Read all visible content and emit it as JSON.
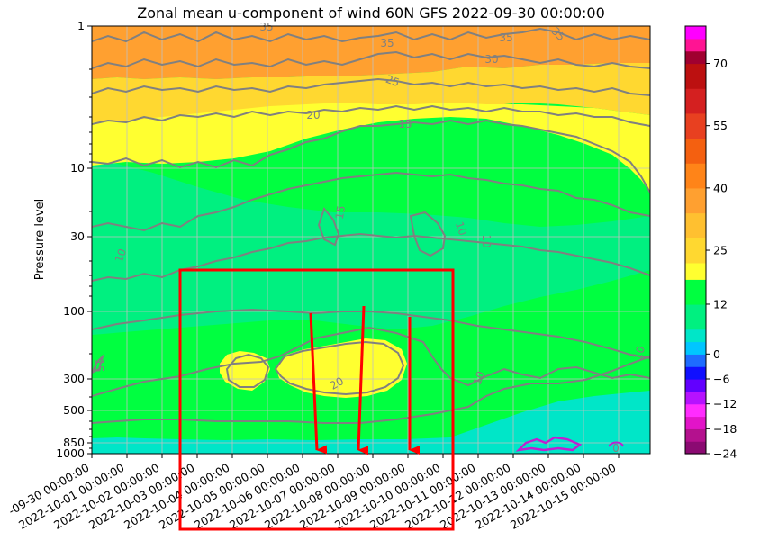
{
  "chart_data": {
    "type": "heatmap",
    "title": "Zonal mean u-component of wind 60N GFS 2022-09-30 00:00:00",
    "ylabel": "Pressure level",
    "xlabel": "",
    "y_scale": "log",
    "y_inverted": true,
    "ylim": [
      1000,
      1
    ],
    "y_ticks": [
      "1",
      "10",
      "30",
      "100",
      "300",
      "500",
      "850",
      "1000"
    ],
    "x_ticks": [
      "2022-09-30 00:00:00",
      "2022-10-01 00:00:00",
      "2022-10-02 00:00:00",
      "2022-10-03 00:00:00",
      "2022-10-04 00:00:00",
      "2022-10-05 00:00:00",
      "2022-10-06 00:00:00",
      "2022-10-07 00:00:00",
      "2022-10-08 00:00:00",
      "2022-10-09 00:00:00",
      "2022-10-10 00:00:00",
      "2022-10-11 00:00:00",
      "2022-10-12 00:00:00",
      "2022-10-13 00:00:00",
      "2022-10-14 00:00:00",
      "2022-10-15 00:00:00"
    ],
    "x_tick_display": [
      "-09-30 00:00:00",
      "2022-10-01 00:00:00",
      "2022-10-02 00:00:00",
      "2022-10-03 00:00:00",
      "2022-10-04 00:00:00",
      "2022-10-05 00:00:00",
      "2022-10-06 00:00:00",
      "2022-10-07 00:00:00",
      "2022-10-08 00:00:00",
      "2022-10-09 00:00:00",
      "2022-10-10 00:00:00",
      "2022-10-11 00:00:00",
      "2022-10-12 00:00:00",
      "2022-10-13 00:00:00",
      "2022-10-14 00:00:00",
      "2022-10-15 00:00:00"
    ],
    "grid": true,
    "colorbar": {
      "tick_labels": [
        "70",
        "55",
        "40",
        "25",
        "12",
        "0",
        "−6",
        "−12",
        "−18",
        "−24"
      ],
      "tick_values": [
        70,
        55,
        40,
        25,
        12,
        0,
        -6,
        -12,
        -18,
        -24
      ],
      "range": [
        -24,
        79
      ],
      "levels": [
        {
          "from": -24,
          "to": -21,
          "color": "#8b0a72"
        },
        {
          "from": -21,
          "to": -18,
          "color": "#b4118e"
        },
        {
          "from": -18,
          "to": -15,
          "color": "#e214c8"
        },
        {
          "from": -15,
          "to": -12,
          "color": "#ff2cff"
        },
        {
          "from": -12,
          "to": -9,
          "color": "#b612ff"
        },
        {
          "from": -9,
          "to": -6,
          "color": "#6200ff"
        },
        {
          "from": -6,
          "to": -3,
          "color": "#1010ff"
        },
        {
          "from": -3,
          "to": 0,
          "color": "#1e6cff"
        },
        {
          "from": 0,
          "to": 3,
          "color": "#00c6ff"
        },
        {
          "from": 3,
          "to": 6,
          "color": "#00e6c8"
        },
        {
          "from": 6,
          "to": 12,
          "color": "#00f080"
        },
        {
          "from": 12,
          "to": 18,
          "color": "#00ff40"
        },
        {
          "from": 18,
          "to": 22,
          "color": "#ffff30"
        },
        {
          "from": 22,
          "to": 28,
          "color": "#ffd830"
        },
        {
          "from": 28,
          "to": 34,
          "color": "#ffc030"
        },
        {
          "from": 34,
          "to": 40,
          "color": "#ffa030"
        },
        {
          "from": 40,
          "to": 46,
          "color": "#ff8418"
        },
        {
          "from": 46,
          "to": 52,
          "color": "#f46010"
        },
        {
          "from": 52,
          "to": 58,
          "color": "#e84020"
        },
        {
          "from": 58,
          "to": 64,
          "color": "#d42020"
        },
        {
          "from": 64,
          "to": 70,
          "color": "#bc1010"
        },
        {
          "from": 70,
          "to": 73,
          "color": "#a00030"
        },
        {
          "from": 73,
          "to": 76,
          "color": "#ff1493"
        },
        {
          "from": 76,
          "to": 79,
          "color": "#ff00ff"
        }
      ]
    },
    "contour_labels": [
      "35",
      "35",
      "35",
      "35",
      "30",
      "25",
      "20",
      "15",
      "15",
      "15",
      "10",
      "10",
      "10",
      "10",
      "10",
      "20",
      "0"
    ],
    "field_colors": {
      "top_band": "#ffa030",
      "upper_mid_band": "#ffd830",
      "yellow_band": "#ffff30",
      "green_main": "#00ff40",
      "green_light": "#00f080",
      "teal_low": "#00e6c8",
      "jet_core": "#ffff30",
      "contour_line": "#808080",
      "negative_contour": "#c020d0"
    },
    "annotations": {
      "highlight_box_color": "#ff0000",
      "arrow_color": "#ff0000",
      "arrow_count": 3
    }
  }
}
